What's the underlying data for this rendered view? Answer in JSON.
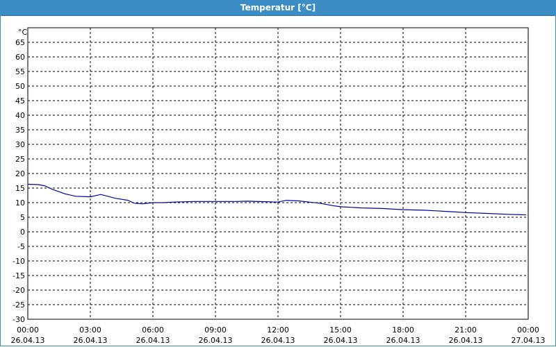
{
  "window": {
    "title": "Temperatur [°C]"
  },
  "colors": {
    "titlebar": "#3c8dc5",
    "line": "#0000a0",
    "grid": "#000000"
  },
  "chart_data": {
    "type": "line",
    "title": "Temperatur [°C]",
    "ylabel": "°C",
    "xlabel": "",
    "ylim": [
      -30,
      70
    ],
    "xlim_hours": [
      0,
      24
    ],
    "grid": true,
    "y_ticks": [
      "65",
      "60",
      "55",
      "50",
      "45",
      "40",
      "35",
      "30",
      "25",
      "20",
      "15",
      "10",
      "5",
      "0",
      "-5",
      "-10",
      "-15",
      "-20",
      "-25",
      "-30"
    ],
    "y_tick_values": [
      65,
      60,
      55,
      50,
      45,
      40,
      35,
      30,
      25,
      20,
      15,
      10,
      5,
      0,
      -5,
      -10,
      -15,
      -20,
      -25,
      -30
    ],
    "x_ticks": [
      {
        "time": "00:00",
        "date": "26.04.13"
      },
      {
        "time": "03:00",
        "date": "26.04.13"
      },
      {
        "time": "06:00",
        "date": "26.04.13"
      },
      {
        "time": "09:00",
        "date": "26.04.13"
      },
      {
        "time": "12:00",
        "date": "26.04.13"
      },
      {
        "time": "15:00",
        "date": "26.04.13"
      },
      {
        "time": "18:00",
        "date": "26.04.13"
      },
      {
        "time": "21:00",
        "date": "26.04.13"
      },
      {
        "time": "00:00",
        "date": "27.04.13"
      }
    ],
    "series": [
      {
        "x_hours": [
          0,
          0.5,
          0.8,
          1.2,
          1.8,
          2.3,
          3.0,
          3.5,
          4.2,
          4.8,
          5.1,
          5.5,
          6.0,
          6.5,
          7.0,
          8.0,
          9.0,
          10.0,
          10.5,
          11.5,
          12.0,
          12.4,
          13.0,
          13.5,
          14.0,
          14.6,
          15.0,
          15.5,
          16.0,
          17.0,
          18.0,
          19.0,
          19.6,
          20.5,
          21.0,
          22.0,
          23.0,
          23.9
        ],
        "y": [
          16.3,
          16.2,
          15.8,
          14.5,
          13.0,
          12.2,
          12.0,
          12.8,
          11.5,
          10.8,
          9.8,
          9.6,
          10.0,
          10.0,
          10.2,
          10.4,
          10.4,
          10.4,
          10.5,
          10.3,
          10.2,
          10.8,
          10.6,
          10.2,
          9.8,
          9.0,
          8.6,
          8.4,
          8.2,
          8.0,
          7.6,
          7.4,
          7.2,
          6.8,
          6.6,
          6.3,
          6.0,
          5.8
        ]
      }
    ]
  }
}
